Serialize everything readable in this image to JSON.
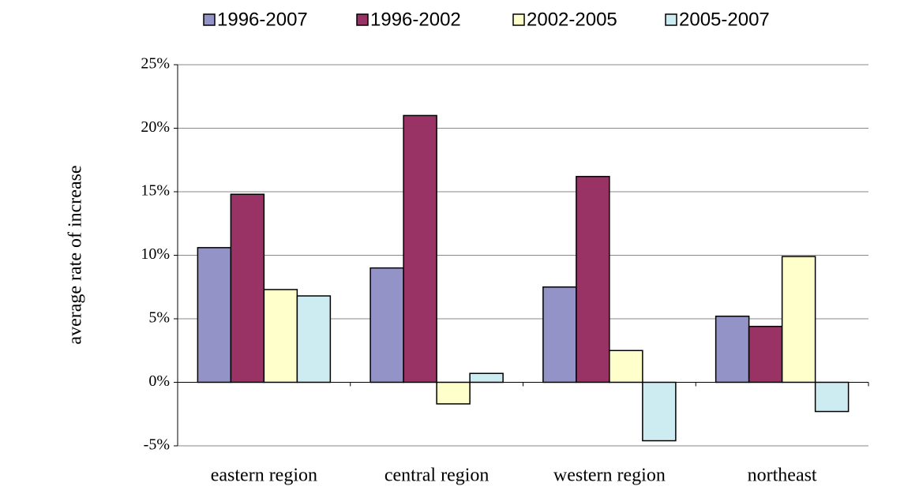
{
  "chart_data": {
    "type": "bar",
    "y_label": "average  rate of increase",
    "categories": [
      "eastern region",
      "central region",
      "western region",
      "northeast"
    ],
    "series": [
      {
        "name": "1996-2007",
        "color": "#9393c8",
        "values": [
          10.6,
          9.0,
          7.5,
          5.2
        ]
      },
      {
        "name": "1996-2002",
        "color": "#993366",
        "values": [
          14.8,
          21.0,
          16.2,
          4.4
        ]
      },
      {
        "name": "2002-2005",
        "color": "#ffffcc",
        "values": [
          7.3,
          -1.7,
          2.5,
          9.9
        ]
      },
      {
        "name": "2005-2007",
        "color": "#ccecf2",
        "values": [
          6.8,
          0.7,
          -4.6,
          -2.3
        ]
      }
    ],
    "ylim": [
      -5,
      25
    ],
    "yticks": [
      {
        "value": -5,
        "label": "-5%"
      },
      {
        "value": 0,
        "label": "0%"
      },
      {
        "value": 5,
        "label": "5%"
      },
      {
        "value": 10,
        "label": "10%"
      },
      {
        "value": 15,
        "label": "15%"
      },
      {
        "value": 20,
        "label": "20%"
      },
      {
        "value": 25,
        "label": "25%"
      }
    ],
    "grid": true,
    "legend": "top"
  }
}
